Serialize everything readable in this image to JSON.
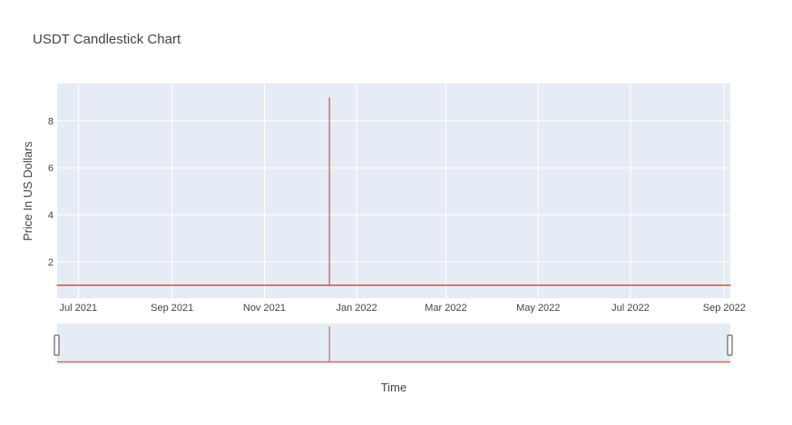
{
  "chart_data": {
    "type": "candlestick",
    "title": "USDT Candlestick Chart",
    "xlabel": "Time",
    "ylabel": "Price In US Dollars",
    "x_range": [
      "2021-06-17",
      "2022-09-05"
    ],
    "ylim": [
      0.45,
      9.6
    ],
    "y_ticks": [
      2,
      4,
      6,
      8
    ],
    "x_ticks": [
      {
        "date": "2021-07-01",
        "label": "Jul 2021"
      },
      {
        "date": "2021-09-01",
        "label": "Sep 2021"
      },
      {
        "date": "2021-11-01",
        "label": "Nov 2021"
      },
      {
        "date": "2022-01-01",
        "label": "Jan 2022"
      },
      {
        "date": "2022-03-01",
        "label": "Mar 2022"
      },
      {
        "date": "2022-05-01",
        "label": "May 2022"
      },
      {
        "date": "2022-07-01",
        "label": "Jul 2022"
      },
      {
        "date": "2022-09-01",
        "label": "Sep 2022"
      }
    ],
    "grid": true,
    "rangeslider": true,
    "baseline_price": 1.0,
    "series": [
      {
        "candles": [
          {
            "date": "2021-06-17",
            "open": 1.0,
            "high": 1.01,
            "low": 0.99,
            "close": 1.0
          },
          {
            "date": "2021-07-17",
            "open": 1.0,
            "high": 1.02,
            "low": 0.99,
            "close": 1.0
          },
          {
            "date": "2021-08-17",
            "open": 1.0,
            "high": 1.01,
            "low": 0.99,
            "close": 1.0
          },
          {
            "date": "2021-09-17",
            "open": 1.0,
            "high": 1.01,
            "low": 0.99,
            "close": 1.0
          },
          {
            "date": "2021-10-17",
            "open": 1.0,
            "high": 1.01,
            "low": 0.99,
            "close": 1.0
          },
          {
            "date": "2021-11-17",
            "open": 1.0,
            "high": 1.01,
            "low": 0.99,
            "close": 1.0
          },
          {
            "date": "2021-12-13",
            "open": 1.0,
            "high": 1.01,
            "low": 0.99,
            "close": 1.0
          },
          {
            "date": "2021-12-14",
            "open": 1.0,
            "high": 9.0,
            "low": 0.98,
            "close": 1.0
          },
          {
            "date": "2021-12-15",
            "open": 1.0,
            "high": 1.01,
            "low": 0.99,
            "close": 1.0
          },
          {
            "date": "2022-01-15",
            "open": 1.0,
            "high": 1.01,
            "low": 0.99,
            "close": 1.0
          },
          {
            "date": "2022-02-15",
            "open": 1.0,
            "high": 1.01,
            "low": 0.99,
            "close": 1.0
          },
          {
            "date": "2022-03-15",
            "open": 1.0,
            "high": 1.01,
            "low": 0.99,
            "close": 1.0
          },
          {
            "date": "2022-04-15",
            "open": 1.0,
            "high": 1.01,
            "low": 0.99,
            "close": 1.0
          },
          {
            "date": "2022-05-12",
            "open": 1.0,
            "high": 1.01,
            "low": 0.97,
            "close": 1.0
          },
          {
            "date": "2022-06-15",
            "open": 1.0,
            "high": 1.01,
            "low": 0.99,
            "close": 1.0
          },
          {
            "date": "2022-07-15",
            "open": 1.0,
            "high": 1.01,
            "low": 0.99,
            "close": 1.0
          },
          {
            "date": "2022-08-15",
            "open": 1.0,
            "high": 1.01,
            "low": 0.99,
            "close": 1.0
          },
          {
            "date": "2022-09-05",
            "open": 1.0,
            "high": 1.01,
            "low": 0.99,
            "close": 1.0
          }
        ]
      }
    ],
    "colors": {
      "plot_bg": "#e5ecf6",
      "grid": "#ffffff",
      "increasing": "#3d9970",
      "decreasing": "#ff4136",
      "line": "#c8553d",
      "text": "#444444"
    }
  }
}
